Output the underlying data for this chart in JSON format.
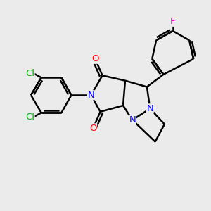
{
  "background_color": "#ebebeb",
  "bond_color": "#000000",
  "bond_width": 1.8,
  "atom_colors": {
    "N": "#0000ff",
    "O": "#ff0000",
    "Cl": "#00aa00",
    "F": "#ff00cc"
  },
  "font_size": 9.5
}
